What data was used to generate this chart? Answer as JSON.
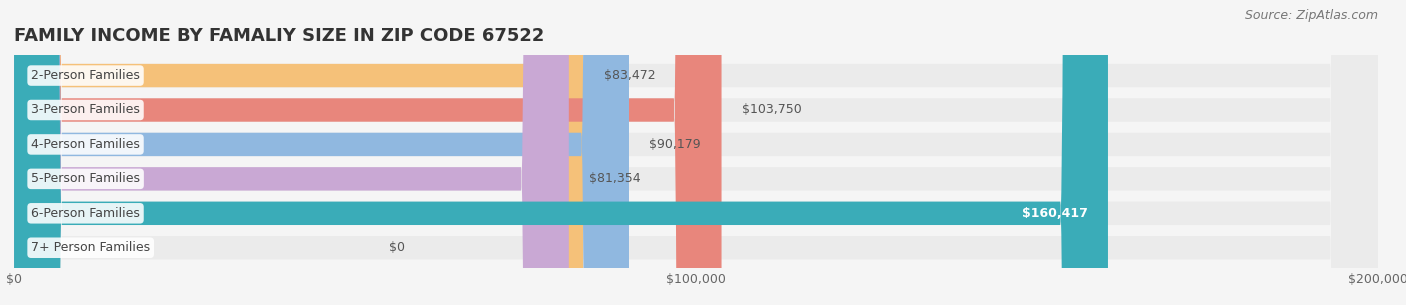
{
  "title": "FAMILY INCOME BY FAMALIY SIZE IN ZIP CODE 67522",
  "source": "Source: ZipAtlas.com",
  "categories": [
    "2-Person Families",
    "3-Person Families",
    "4-Person Families",
    "5-Person Families",
    "6-Person Families",
    "7+ Person Families"
  ],
  "values": [
    83472,
    103750,
    90179,
    81354,
    160417,
    0
  ],
  "bar_colors": [
    "#f5c179",
    "#e8867c",
    "#90b8e0",
    "#c9a8d4",
    "#3aacb8",
    "#c5c8e8"
  ],
  "value_labels": [
    "$83,472",
    "$103,750",
    "$90,179",
    "$81,354",
    "$160,417",
    "$0"
  ],
  "xlim": [
    0,
    200000
  ],
  "xticks": [
    0,
    100000,
    200000
  ],
  "xtick_labels": [
    "$0",
    "$100,000",
    "$200,000"
  ],
  "background_color": "#f5f5f5",
  "bar_background": "#ebebeb",
  "title_fontsize": 13,
  "source_fontsize": 9,
  "label_fontsize": 9,
  "value_fontsize": 9,
  "tick_fontsize": 9,
  "bar_height": 0.68
}
